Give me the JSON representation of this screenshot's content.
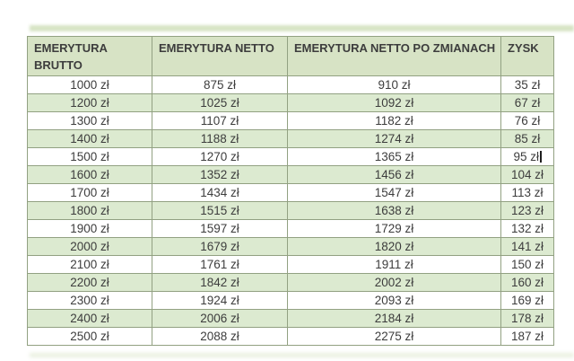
{
  "table": {
    "headers": [
      {
        "key": "brutto",
        "label": "EMERYTURA BRUTTO"
      },
      {
        "key": "netto",
        "label": "EMERYTURA NETTO"
      },
      {
        "key": "netto_po_zmianach",
        "label": "EMERYTURA NETTO PO ZMIANACH"
      },
      {
        "key": "zysk",
        "label": "ZYSK"
      }
    ],
    "columns": [
      "brutto",
      "netto",
      "netto_po_zmianach",
      "zysk"
    ],
    "rows": [
      {
        "brutto": "1000 zł",
        "netto": "875 zł",
        "netto_po_zmianach": "910 zł",
        "zysk": "35 zł"
      },
      {
        "brutto": "1200 zł",
        "netto": "1025 zł",
        "netto_po_zmianach": "1092 zł",
        "zysk": "67 zł"
      },
      {
        "brutto": "1300 zł",
        "netto": "1107 zł",
        "netto_po_zmianach": "1182 zł",
        "zysk": "76 zł"
      },
      {
        "brutto": "1400 zł",
        "netto": "1188 zł",
        "netto_po_zmianach": "1274 zł",
        "zysk": "85 zł"
      },
      {
        "brutto": "1500 zł",
        "netto": "1270 zł",
        "netto_po_zmianach": "1365 zł",
        "zysk": "95 zł"
      },
      {
        "brutto": "1600 zł",
        "netto": "1352 zł",
        "netto_po_zmianach": "1456 zł",
        "zysk": "104 zł"
      },
      {
        "brutto": "1700 zł",
        "netto": "1434 zł",
        "netto_po_zmianach": "1547 zł",
        "zysk": "113 zł"
      },
      {
        "brutto": "1800 zł",
        "netto": "1515 zł",
        "netto_po_zmianach": "1638 zł",
        "zysk": "123 zł"
      },
      {
        "brutto": "1900 zł",
        "netto": "1597 zł",
        "netto_po_zmianach": "1729 zł",
        "zysk": "132 zł"
      },
      {
        "brutto": "2000 zł",
        "netto": "1679 zł",
        "netto_po_zmianach": "1820 zł",
        "zysk": "141 zł"
      },
      {
        "brutto": "2100 zł",
        "netto": "1761 zł",
        "netto_po_zmianach": "1911 zł",
        "zysk": "150 zł"
      },
      {
        "brutto": "2200 zł",
        "netto": "1842 zł",
        "netto_po_zmianach": "2002 zł",
        "zysk": "160 zł"
      },
      {
        "brutto": "2300 zł",
        "netto": "1924 zł",
        "netto_po_zmianach": "2093 zł",
        "zysk": "169 zł"
      },
      {
        "brutto": "2400 zł",
        "netto": "2006 zł",
        "netto_po_zmianach": "2184 zł",
        "zysk": "178 zł"
      },
      {
        "brutto": "2500 zł",
        "netto": "2088 zł",
        "netto_po_zmianach": "2275 zł",
        "zysk": "187 zł"
      }
    ]
  },
  "caret": {
    "row_index": 4,
    "column": "zysk"
  },
  "colors": {
    "header_bg": "#d7e3c5",
    "row_alt_bg": "#dcead0",
    "border_color": "#92a182",
    "text_color": "#3d3d3d",
    "smear_color": "#cfdfba",
    "page_bg": "#ffffff"
  }
}
